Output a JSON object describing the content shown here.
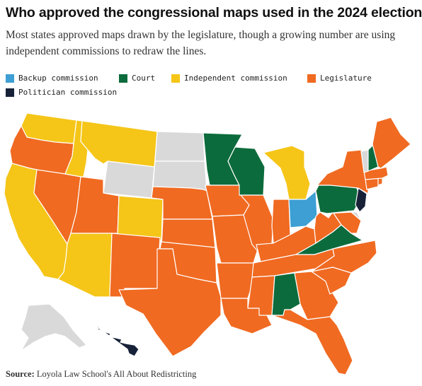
{
  "title": "Who approved the congressional maps used in the 2024 election",
  "subtitle": "Most states approved maps drawn by the legislature, though a growing number are using  independent commissions to redraw the lines.",
  "legend": [
    {
      "label": "Backup commission",
      "color": "#3d9fd3"
    },
    {
      "label": "Court",
      "color": "#0c6b3c"
    },
    {
      "label": "Independent commission",
      "color": "#f5c518"
    },
    {
      "label": "Legislature",
      "color": "#f06a21"
    },
    {
      "label": "Politician commission",
      "color": "#172239"
    }
  ],
  "source": {
    "label": "Source:",
    "text": "Loyola Law School's All About Redistricting"
  },
  "colors": {
    "none": "#d9d9d9",
    "border": "#ffffff"
  },
  "states": {
    "WA": "Independent commission",
    "OR": "Legislature",
    "CA": "Independent commission",
    "ID": "Independent commission",
    "MT": "Independent commission",
    "AZ": "Independent commission",
    "CO": "Independent commission",
    "MI": "Independent commission",
    "NV": "Legislature",
    "UT": "Legislature",
    "NM": "Legislature",
    "TX": "Legislature",
    "OK": "Legislature",
    "KS": "Legislature",
    "NE": "Legislature",
    "IA": "Legislature",
    "MO": "Legislature",
    "AR": "Legislature",
    "LA": "Legislature",
    "MS": "Legislature",
    "IL": "Legislature",
    "IN": "Legislature",
    "KY": "Legislature",
    "TN": "Legislature",
    "GA": "Legislature",
    "FL": "Legislature",
    "SC": "Legislature",
    "NC": "Legislature",
    "WV": "Legislature",
    "MD": "Legislature",
    "NY": "Legislature",
    "MA": "Legislature",
    "ME": "Legislature",
    "CT": "Legislature",
    "RI": "Legislature",
    "MN": "Court",
    "WI": "Court",
    "AL": "Court",
    "PA": "Court",
    "VA": "Court",
    "NH": "Court",
    "OH": "Backup commission",
    "NJ": "Politician commission",
    "HI": "Politician commission",
    "ND": "",
    "SD": "",
    "WY": "",
    "VT": "",
    "DE": "",
    "AK": ""
  }
}
